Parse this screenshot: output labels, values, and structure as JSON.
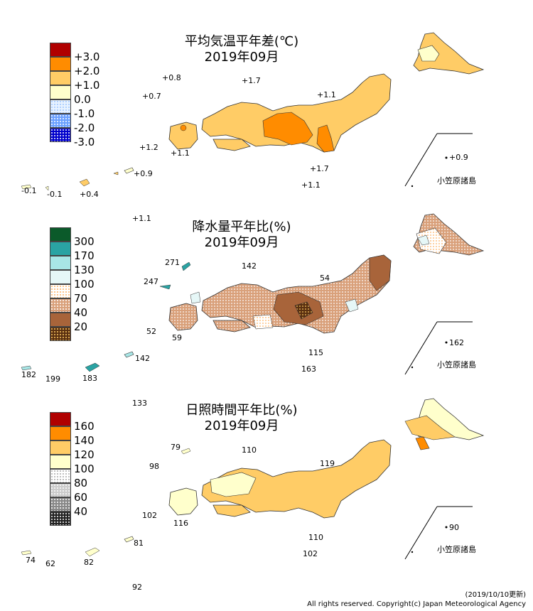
{
  "panels": [
    {
      "id": "temp",
      "title_line1": "平均気温平年差(℃)",
      "title_line2": "2019年09月",
      "legend": [
        {
          "label": "+3.0",
          "color": "#b00000",
          "pattern": "solid"
        },
        {
          "label": "+2.0",
          "color": "#ff8c00",
          "pattern": "solid"
        },
        {
          "label": "+1.0",
          "color": "#ffcc66",
          "pattern": "solid"
        },
        {
          "label": "0.0",
          "color": "#ffffcc",
          "pattern": "solid"
        },
        {
          "label": "-1.0",
          "color": "#cfe6ff",
          "pattern": "dots"
        },
        {
          "label": "-2.0",
          "color": "#6aa0ff",
          "pattern": "dots"
        },
        {
          "label": "-3.0",
          "color": "#0000cc",
          "pattern": "dots"
        }
      ],
      "values": [
        "+0.8",
        "+1.7",
        "+0.7",
        "+1.1",
        "+1.2",
        "+1.1",
        "+0.9",
        "+1.7",
        "+1.1",
        "+0.9",
        "-0.1",
        "-0.1",
        "+0.4",
        "+1.1"
      ],
      "island_label": "小笠原諸島"
    },
    {
      "id": "precip",
      "title_line1": "降水量平年比(%)",
      "title_line2": "2019年09月",
      "legend": [
        {
          "label": "300",
          "color": "#0b5a2a",
          "pattern": "solid"
        },
        {
          "label": "170",
          "color": "#2aa3a3",
          "pattern": "solid"
        },
        {
          "label": "130",
          "color": "#a8e6e6",
          "pattern": "solid"
        },
        {
          "label": "100",
          "color": "#e6f7f7",
          "pattern": "solid"
        },
        {
          "label": "70",
          "color": "#ffcc88",
          "pattern": "dots"
        },
        {
          "label": "40",
          "color": "#d9a07a",
          "pattern": "dots"
        },
        {
          "label": "20",
          "color": "#a8643a",
          "pattern": "solid"
        },
        {
          "label": "",
          "color": "#5a3010",
          "pattern": "dots"
        }
      ],
      "values": [
        "271",
        "142",
        "247",
        "54",
        "52",
        "59",
        "115",
        "162",
        "142",
        "182",
        "199",
        "183",
        "163",
        "133"
      ],
      "island_label": "小笠原諸島"
    },
    {
      "id": "sun",
      "title_line1": "日照時間平年比(%)",
      "title_line2": "2019年09月",
      "legend": [
        {
          "label": "160",
          "color": "#b00000",
          "pattern": "solid"
        },
        {
          "label": "140",
          "color": "#ff8c00",
          "pattern": "solid"
        },
        {
          "label": "120",
          "color": "#ffcc66",
          "pattern": "solid"
        },
        {
          "label": "100",
          "color": "#ffffcc",
          "pattern": "solid"
        },
        {
          "label": "80",
          "color": "#ffffff",
          "pattern": "dots"
        },
        {
          "label": "60",
          "color": "#cccccc",
          "pattern": "dots"
        },
        {
          "label": "40",
          "color": "#888888",
          "pattern": "dots"
        },
        {
          "label": "",
          "color": "#222222",
          "pattern": "dots"
        }
      ],
      "values": [
        "79",
        "110",
        "98",
        "119",
        "102",
        "116",
        "110",
        "90",
        "81",
        "102",
        "74",
        "62",
        "82",
        "92"
      ],
      "island_label": "小笠原諸島"
    }
  ],
  "footer": {
    "date": "(2019/10/10更新)",
    "copyright": "All rights reserved. Copyright(c) Japan Meteorological Agency"
  }
}
